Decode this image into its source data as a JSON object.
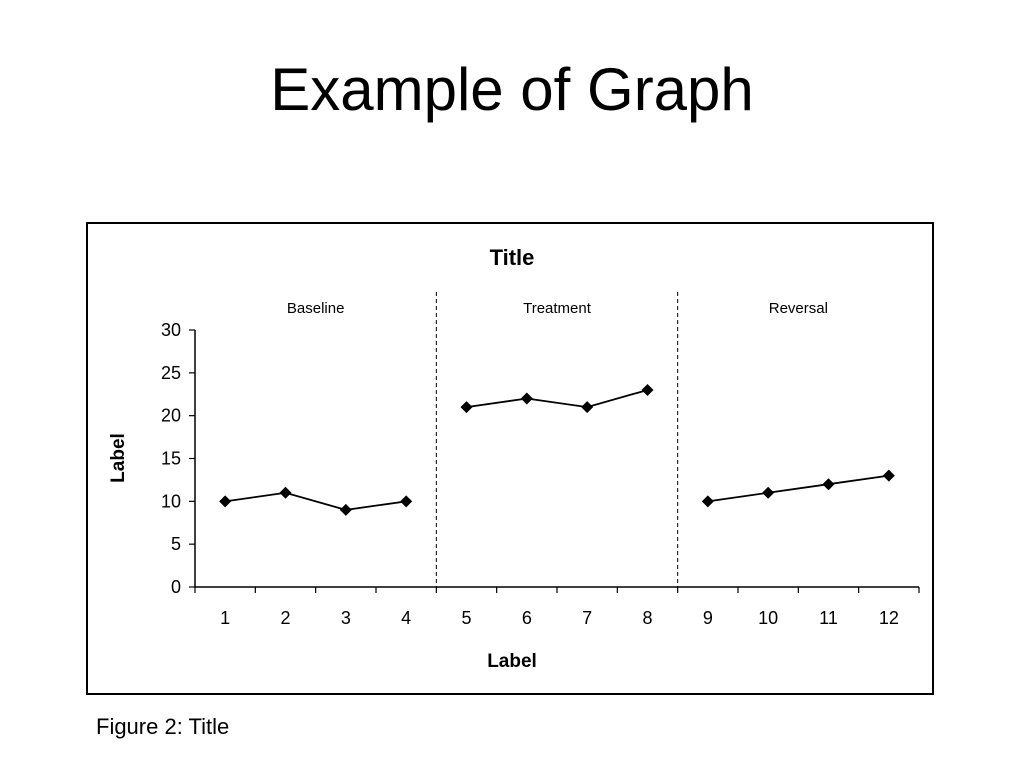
{
  "slide": {
    "title": "Example of Graph",
    "caption": "Figure 2: Title"
  },
  "chart_data": {
    "type": "line",
    "title": "Title",
    "xlabel": "Label",
    "ylabel": "Label",
    "x": [
      1,
      2,
      3,
      4,
      5,
      6,
      7,
      8,
      9,
      10,
      11,
      12
    ],
    "ylim": [
      0,
      30
    ],
    "yticks": [
      0,
      5,
      10,
      15,
      20,
      25,
      30
    ],
    "grid": false,
    "marker": "diamond",
    "line_color": "#000000",
    "phase_separator": "dashed",
    "phases": [
      {
        "label": "Baseline",
        "x": [
          1,
          2,
          3,
          4
        ],
        "values": [
          10,
          11,
          9,
          10
        ]
      },
      {
        "label": "Treatment",
        "x": [
          5,
          6,
          7,
          8
        ],
        "values": [
          21,
          22,
          21,
          23
        ]
      },
      {
        "label": "Reversal",
        "x": [
          9,
          10,
          11,
          12
        ],
        "values": [
          10,
          11,
          12,
          13
        ]
      }
    ]
  }
}
